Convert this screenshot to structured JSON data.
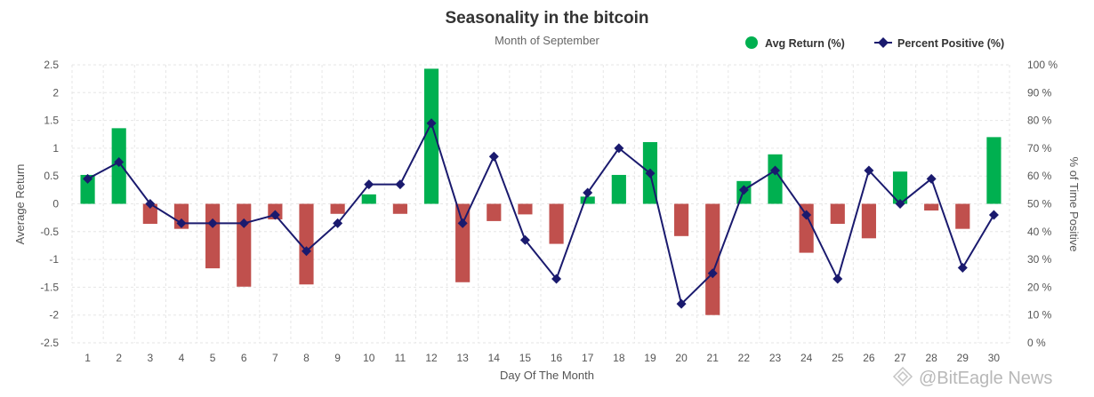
{
  "chart_data": {
    "type": "bar+line",
    "title": "Seasonality in the bitcoin",
    "subtitle": "Month of September",
    "xlabel": "Day Of The Month",
    "ylabel_left": "Average Return",
    "ylabel_right": "% of Time Positive",
    "ylim_left": [
      -2.5,
      2.5
    ],
    "yticks_left": [
      "2.5",
      "2",
      "1.5",
      "1",
      "0.5",
      "0",
      "-0.5",
      "-1",
      "-1.5",
      "-2",
      "-2.5"
    ],
    "ylim_right": [
      0,
      100
    ],
    "yticks_right": [
      "100 %",
      "90 %",
      "80 %",
      "70 %",
      "60 %",
      "50 %",
      "40 %",
      "30 %",
      "20 %",
      "10 %",
      "0 %"
    ],
    "categories": [
      "1",
      "2",
      "3",
      "4",
      "5",
      "6",
      "7",
      "8",
      "9",
      "10",
      "11",
      "12",
      "13",
      "14",
      "15",
      "16",
      "17",
      "18",
      "19",
      "20",
      "21",
      "22",
      "23",
      "24",
      "25",
      "26",
      "27",
      "28",
      "29",
      "30"
    ],
    "grid": "dashed vertical and horizontal",
    "legend_position": "top-right",
    "series": [
      {
        "name": "Avg Return (%)",
        "kind": "bar",
        "axis": "left",
        "positive_color": "#00b050",
        "negative_color": "#c0504d",
        "values": [
          0.52,
          1.36,
          -0.36,
          -0.45,
          -1.16,
          -1.49,
          -0.28,
          -1.45,
          -0.18,
          0.17,
          -0.18,
          2.43,
          -1.41,
          -0.31,
          -0.19,
          -0.72,
          0.13,
          0.52,
          1.11,
          -0.58,
          -2.0,
          0.41,
          0.89,
          -0.88,
          -0.36,
          -0.62,
          0.58,
          -0.12,
          -0.45,
          1.2
        ]
      },
      {
        "name": "Percent Positive (%)",
        "kind": "line",
        "axis": "right",
        "color": "#1a1a6e",
        "values": [
          59,
          65,
          50,
          43,
          43,
          43,
          46,
          33,
          43,
          57,
          57,
          79,
          43,
          67,
          37,
          23,
          54,
          70,
          61,
          14,
          25,
          55,
          62,
          46,
          23,
          62,
          50,
          59,
          27,
          46
        ]
      }
    ]
  },
  "legend": {
    "bar_label": "Avg Return (%)",
    "line_label": "Percent Positive (%)",
    "bar_color": "#00b050",
    "line_color": "#1a1a6e"
  },
  "watermark": {
    "text": "@BitEagle News",
    "icon": "eagle-logo-icon"
  }
}
